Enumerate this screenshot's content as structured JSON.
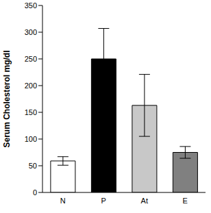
{
  "chart_data": {
    "type": "bar",
    "y_label": "Serum Cholesterol  mg/dl",
    "categories": [
      "N",
      "P",
      "At",
      "E"
    ],
    "values": [
      59,
      250,
      163,
      75
    ],
    "errors": [
      8,
      57,
      58,
      11
    ],
    "colors": [
      "#ffffff",
      "#000000",
      "#c8c8c8",
      "#808080"
    ],
    "ylim": [
      0,
      350
    ],
    "yticks": [
      0,
      50,
      100,
      150,
      200,
      250,
      300,
      350
    ],
    "grid": false
  }
}
